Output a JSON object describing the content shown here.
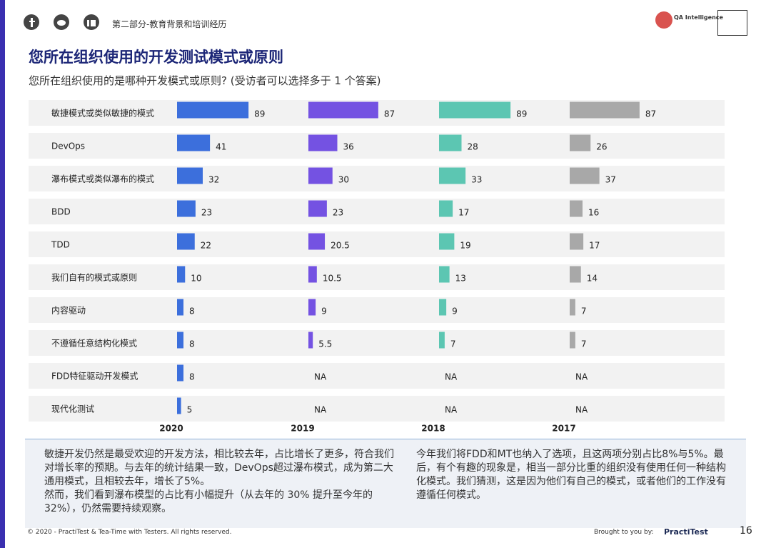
{
  "header": {
    "section": "第二部分-教育背景和培训经历",
    "logo": "QA Intelligence",
    "title": "您所在组织使用的开发测试模式或原则",
    "subtitle": "您所在组织使用的是哪种开发模式或原则? (受访者可以选择多于 1 个答案)"
  },
  "chart_data": [
    {
      "type": "bar",
      "title": "2020",
      "color": "#3c6fdc",
      "xlim": [
        0,
        160
      ],
      "categories": [
        "敏捷模式或类似敏捷的模式",
        "DevOps",
        "瀑布模式或类似瀑布的模式",
        "BDD",
        "TDD",
        "我们自有的模式或原则",
        "内容驱动",
        "不遵循任意结构化模式",
        "FDD特征驱动开发模式",
        "现代化测试"
      ],
      "values": [
        89,
        41,
        32,
        23,
        22,
        10,
        8,
        8,
        8,
        5
      ]
    },
    {
      "type": "bar",
      "title": "2019",
      "color": "#7452e2",
      "xlim": [
        0,
        160
      ],
      "values": [
        87,
        36,
        30,
        23,
        20.5,
        10.5,
        9,
        5.5,
        null,
        null
      ],
      "value_labels": [
        "87",
        "36",
        "30",
        "23",
        "20.5",
        "10.5",
        "9",
        "5.5",
        "NA",
        "NA"
      ]
    },
    {
      "type": "bar",
      "title": "2018",
      "color": "#5cc6b2",
      "xlim": [
        0,
        160
      ],
      "values": [
        89,
        28,
        33,
        17,
        19,
        13,
        9,
        7,
        null,
        null
      ],
      "value_labels": [
        "89",
        "28",
        "33",
        "17",
        "19",
        "13",
        "9",
        "7",
        "NA",
        "NA"
      ]
    },
    {
      "type": "bar",
      "title": "2017",
      "color": "#a8a8a8",
      "xlim": [
        0,
        160
      ],
      "values": [
        87,
        26,
        37,
        16,
        17,
        14,
        7,
        7,
        null,
        null
      ],
      "value_labels": [
        "87",
        "26",
        "37",
        "16",
        "17",
        "14",
        "7",
        "7",
        "NA",
        "NA"
      ]
    }
  ],
  "notes": {
    "left": [
      "敏捷开发仍然是最受欢迎的开发方法，相比较去年，占比增长了更多，符合我们对增长率的预期。与去年的统计结果一致，DevOps超过瀑布模式，成为第二大通用模式，且相较去年，增长了5%。",
      "然而，我们看到瀑布模型的占比有小幅提升（从去年的 30% 提升至今年的 32%），仍然需要持续观察。"
    ],
    "right": [
      "今年我们将FDD和MT也纳入了选项，且这两项分别占比8%与5%。最后，有个有趣的现象是，相当一部分比重的组织没有使用任何一种结构化模式。我们猜测，这是因为他们有自己的模式，或者他们的工作没有遵循任何模式。"
    ]
  },
  "footer": {
    "copyright": "© 2020 - PractiTest & Tea-Time with Testers. All rights reserved.",
    "brought": "Brought to you by:",
    "brand": "PractiTest",
    "page": "16"
  }
}
